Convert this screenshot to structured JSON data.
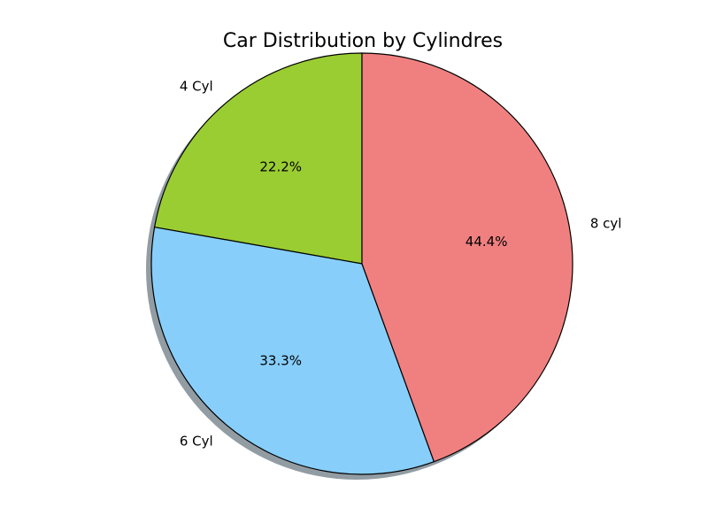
{
  "chart_data": {
    "type": "pie",
    "title": "Car Distribution by Cylindres",
    "slices": [
      {
        "label": "4 Cyl",
        "value": 22.2,
        "pct_text": "22.2%",
        "color": "#9ACD32"
      },
      {
        "label": "6 Cyl",
        "value": 33.3,
        "pct_text": "33.3%",
        "color": "#87CEFA"
      },
      {
        "label": "8 cyl",
        "value": 44.4,
        "pct_text": "44.4%",
        "color": "#F08080"
      }
    ],
    "start_angle_deg": 90,
    "direction": "counterclockwise",
    "shadow": true,
    "edge_color": "#000000",
    "shadow_color": "#6E7B84"
  }
}
